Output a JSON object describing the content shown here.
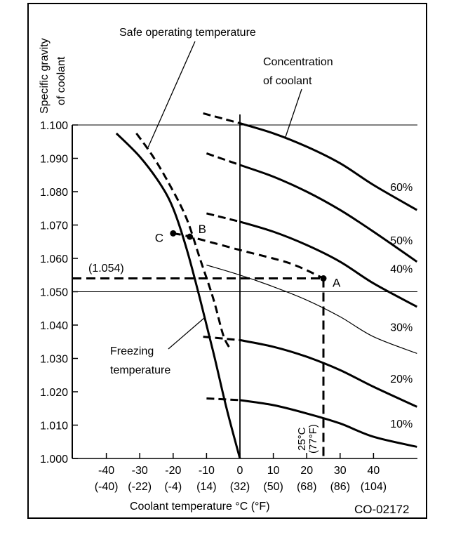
{
  "chart_data": {
    "type": "line",
    "title": "",
    "figure_id": "CO-02172",
    "ylabel_lines": [
      "Specific gravity",
      "of coolant"
    ],
    "xlabel": "Coolant temperature °C (°F)",
    "xlim": [
      -55,
      48
    ],
    "ylim": [
      1.0,
      1.105
    ],
    "yticks": [
      {
        "value": 1.1,
        "label": "1.100"
      },
      {
        "value": 1.09,
        "label": "1.090"
      },
      {
        "value": 1.08,
        "label": "1.080"
      },
      {
        "value": 1.07,
        "label": "1.070"
      },
      {
        "value": 1.06,
        "label": "1.060"
      },
      {
        "value": 1.05,
        "label": "1.050"
      },
      {
        "value": 1.04,
        "label": "1.040"
      },
      {
        "value": 1.03,
        "label": "1.030"
      },
      {
        "value": 1.02,
        "label": "1.020"
      },
      {
        "value": 1.01,
        "label": "1.010"
      },
      {
        "value": 1.0,
        "label": "1.000"
      }
    ],
    "xticks": [
      {
        "value": -40,
        "label": "-40",
        "label_f": "(-40)"
      },
      {
        "value": -30,
        "label": "-30",
        "label_f": "(-22)"
      },
      {
        "value": -20,
        "label": "-20",
        "label_f": "(-4)"
      },
      {
        "value": -10,
        "label": "-10",
        "label_f": "(14)"
      },
      {
        "value": 0,
        "label": "0",
        "label_f": "(32)"
      },
      {
        "value": 10,
        "label": "10",
        "label_f": "(50)"
      },
      {
        "value": 20,
        "label": "20",
        "label_f": "(68)"
      },
      {
        "value": 30,
        "label": "30",
        "label_f": "(86)"
      },
      {
        "value": 40,
        "label": "40",
        "label_f": "(104)"
      }
    ],
    "reference_lines": {
      "horizontal": [
        1.1,
        1.05
      ],
      "vertical": [
        0
      ]
    },
    "concentration_series": [
      {
        "name": "60%",
        "label": "60%",
        "dashed_part": [
          [
            -11,
            1.1035
          ],
          [
            0,
            1.1005
          ]
        ],
        "solid_part": [
          [
            0,
            1.1005
          ],
          [
            10,
            1.0975
          ],
          [
            20,
            1.0935
          ],
          [
            30,
            1.0885
          ],
          [
            40,
            1.082
          ],
          [
            53,
            1.0745
          ]
        ],
        "label_at": [
          45,
          1.0815
        ]
      },
      {
        "name": "50%",
        "label": "50%",
        "dashed_part": [
          [
            -10,
            1.0915
          ],
          [
            0,
            1.088
          ]
        ],
        "solid_part": [
          [
            0,
            1.088
          ],
          [
            10,
            1.0845
          ],
          [
            20,
            1.08
          ],
          [
            30,
            1.0745
          ],
          [
            40,
            1.068
          ],
          [
            53,
            1.059
          ]
        ],
        "label_at": [
          45,
          1.0655
        ]
      },
      {
        "name": "40%",
        "label": "40%",
        "dashed_part": [
          [
            -10,
            1.0735
          ],
          [
            0,
            1.071
          ]
        ],
        "solid_part": [
          [
            0,
            1.071
          ],
          [
            10,
            1.068
          ],
          [
            20,
            1.064
          ],
          [
            30,
            1.059
          ],
          [
            40,
            1.0525
          ],
          [
            53,
            1.0455
          ]
        ],
        "label_at": [
          45,
          1.057
        ]
      },
      {
        "name": "30%",
        "label": "30%",
        "thin": true,
        "dashed_part": [],
        "solid_part": [
          [
            -10,
            1.058
          ],
          [
            0,
            1.055
          ],
          [
            10,
            1.0515
          ],
          [
            20,
            1.0475
          ],
          [
            30,
            1.0425
          ],
          [
            40,
            1.0365
          ],
          [
            53,
            1.0315
          ]
        ],
        "label_at": [
          45,
          1.0395
        ]
      },
      {
        "name": "20%",
        "label": "20%",
        "dashed_part": [
          [
            -11,
            1.0365
          ],
          [
            0,
            1.0355
          ]
        ],
        "solid_part": [
          [
            0,
            1.0355
          ],
          [
            10,
            1.0335
          ],
          [
            20,
            1.0305
          ],
          [
            30,
            1.0265
          ],
          [
            40,
            1.0215
          ],
          [
            53,
            1.0155
          ]
        ],
        "label_at": [
          45,
          1.024
        ]
      },
      {
        "name": "10%",
        "label": "10%",
        "dashed_part": [
          [
            -10,
            1.018
          ],
          [
            0,
            1.0175
          ]
        ],
        "solid_part": [
          [
            0,
            1.0175
          ],
          [
            10,
            1.016
          ],
          [
            20,
            1.0135
          ],
          [
            30,
            1.0105
          ],
          [
            40,
            1.0065
          ],
          [
            53,
            1.0035
          ]
        ],
        "label_at": [
          45,
          1.0105
        ]
      }
    ],
    "freezing_temperature": {
      "name": "Freezing temperature",
      "label_lines": [
        "Freezing",
        "temperature"
      ],
      "points": [
        [
          -37,
          1.0975
        ],
        [
          -30,
          1.0905
        ],
        [
          -24,
          1.0825
        ],
        [
          -20,
          1.075
        ],
        [
          -16,
          1.063
        ],
        [
          -12,
          1.048
        ],
        [
          -8,
          1.032
        ],
        [
          -4,
          1.015
        ],
        [
          0,
          1.0
        ]
      ]
    },
    "safe_operating_temperature": {
      "name": "Safe operating temperature",
      "label": "Safe operating temperature",
      "points": [
        [
          -31,
          1.0975
        ],
        [
          -26,
          1.0905
        ],
        [
          -21,
          1.082
        ],
        [
          -16,
          1.072
        ],
        [
          -12,
          1.06
        ],
        [
          -8,
          1.048
        ],
        [
          -5,
          1.037
        ],
        [
          -3,
          1.033
        ]
      ]
    },
    "concentration_label_lines": [
      "Concentration",
      "of coolant"
    ],
    "example": {
      "point_A": {
        "label": "A",
        "x": 25,
        "y": 1.054
      },
      "point_B": {
        "label": "B",
        "x": -15,
        "y": 1.0665
      },
      "point_C": {
        "label": "C",
        "x": -20,
        "y": 1.0675
      },
      "sg_readout": "(1.054)",
      "temp_readout_c": "25°C",
      "temp_readout_f": "(77°F)"
    }
  }
}
